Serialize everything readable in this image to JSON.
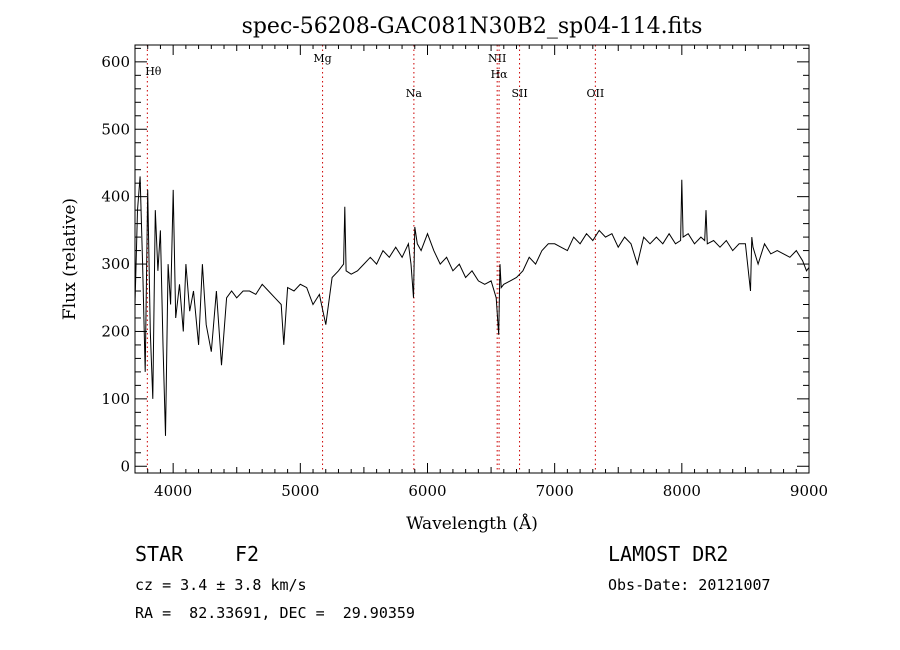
{
  "chart_data": {
    "type": "line",
    "title": "spec-56208-GAC081N30B2_sp04-114.fits",
    "xlabel": "Wavelength (Å)",
    "ylabel": "Flux (relative)",
    "xlim": [
      3700,
      9000
    ],
    "ylim": [
      -10,
      625
    ],
    "x_ticks": [
      4000,
      5000,
      6000,
      7000,
      8000,
      9000
    ],
    "y_ticks": [
      0,
      100,
      200,
      300,
      400,
      500,
      600
    ],
    "line_color": "#000000",
    "marker_color": "#cc0000",
    "lines": [
      {
        "label": "Hθ",
        "x": 3797
      },
      {
        "label": "Mg",
        "x": 5175
      },
      {
        "label": "Na",
        "x": 5893
      },
      {
        "label": "NII",
        "x": 6548
      },
      {
        "label": "Hα",
        "x": 6563
      },
      {
        "label": "SII",
        "x": 6724
      },
      {
        "label": "OII",
        "x": 7320
      }
    ],
    "series": [
      {
        "x": [
          3700,
          3720,
          3740,
          3760,
          3780,
          3800,
          3820,
          3840,
          3860,
          3880,
          3900,
          3920,
          3940,
          3960,
          3980,
          4000,
          4020,
          4050,
          4080,
          4100,
          4130,
          4160,
          4200,
          4230,
          4260,
          4300,
          4340,
          4380,
          4420,
          4460,
          4500,
          4550,
          4600,
          4650,
          4700,
          4750,
          4800,
          4850,
          4870,
          4900,
          4950,
          5000,
          5050,
          5100,
          5150,
          5200,
          5250,
          5300,
          5340,
          5350,
          5360,
          5400,
          5450,
          5500,
          5550,
          5600,
          5650,
          5700,
          5750,
          5800,
          5850,
          5870,
          5890,
          5900,
          5920,
          5950,
          6000,
          6050,
          6100,
          6150,
          6200,
          6250,
          6300,
          6350,
          6400,
          6450,
          6500,
          6540,
          6560,
          6570,
          6580,
          6600,
          6650,
          6700,
          6750,
          6800,
          6850,
          6900,
          6950,
          7000,
          7050,
          7100,
          7150,
          7200,
          7250,
          7300,
          7350,
          7400,
          7450,
          7500,
          7550,
          7600,
          7650,
          7700,
          7750,
          7800,
          7850,
          7900,
          7950,
          7990,
          8000,
          8010,
          8050,
          8100,
          8150,
          8180,
          8190,
          8200,
          8250,
          8300,
          8350,
          8400,
          8450,
          8500,
          8540,
          8550,
          8560,
          8600,
          8650,
          8700,
          8750,
          8800,
          8850,
          8900,
          8950,
          8980,
          9000
        ],
        "y": [
          240,
          380,
          430,
          300,
          140,
          410,
          200,
          100,
          380,
          290,
          350,
          180,
          45,
          300,
          240,
          410,
          220,
          270,
          200,
          300,
          230,
          260,
          180,
          300,
          210,
          170,
          260,
          150,
          250,
          260,
          250,
          260,
          260,
          255,
          270,
          260,
          250,
          240,
          180,
          265,
          260,
          270,
          265,
          240,
          255,
          210,
          280,
          290,
          300,
          385,
          290,
          285,
          290,
          300,
          310,
          300,
          320,
          310,
          325,
          310,
          330,
          300,
          250,
          355,
          330,
          320,
          345,
          320,
          300,
          310,
          290,
          300,
          280,
          290,
          275,
          270,
          275,
          250,
          195,
          300,
          265,
          270,
          275,
          280,
          290,
          310,
          300,
          320,
          330,
          330,
          325,
          320,
          340,
          330,
          345,
          335,
          350,
          340,
          345,
          325,
          340,
          330,
          300,
          340,
          330,
          340,
          330,
          345,
          330,
          335,
          425,
          340,
          345,
          330,
          340,
          335,
          380,
          330,
          335,
          325,
          335,
          320,
          330,
          330,
          260,
          340,
          325,
          300,
          330,
          315,
          320,
          315,
          310,
          320,
          305,
          290,
          295
        ]
      }
    ]
  },
  "footer": {
    "object_class": "STAR",
    "subclass": "F2",
    "survey": "LAMOST DR2",
    "redshift": "cz = 3.4 ± 3.8 km/s",
    "obs_date": "Obs-Date: 20121007",
    "coords": "RA =  82.33691, DEC =  29.90359"
  }
}
